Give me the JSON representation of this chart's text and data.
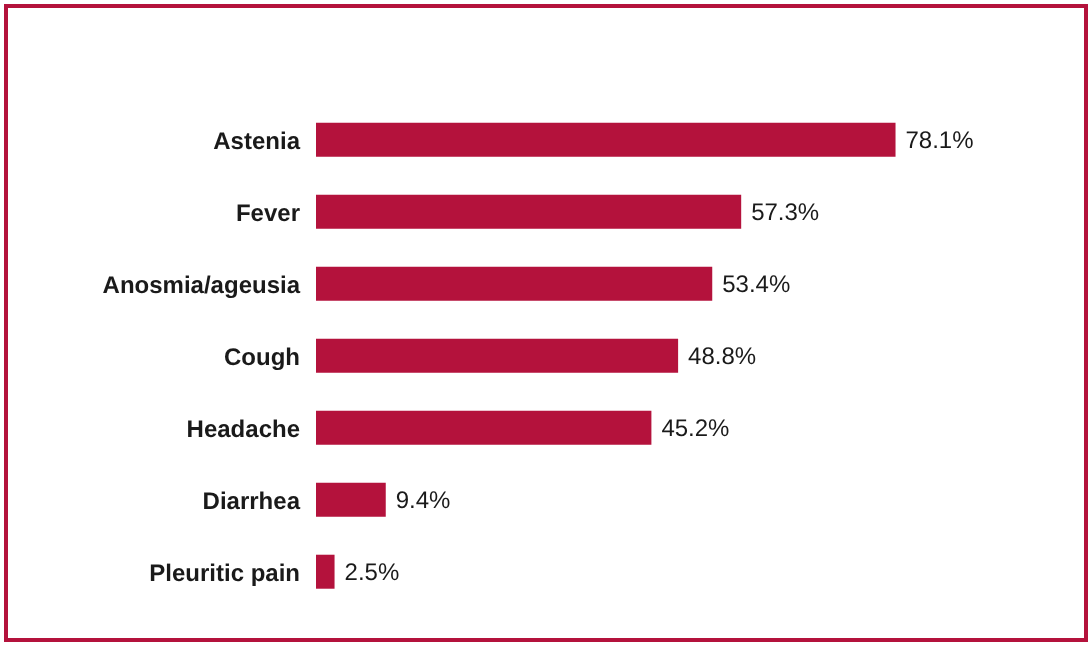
{
  "chart_data": {
    "type": "bar",
    "orientation": "horizontal",
    "categories": [
      "Astenia",
      "Fever",
      "Anosmia/ageusia",
      "Cough",
      "Headache",
      "Diarrhea",
      "Pleuritic pain"
    ],
    "values": [
      78.1,
      57.3,
      53.4,
      48.8,
      45.2,
      9.4,
      2.5
    ],
    "value_labels": [
      "78.1%",
      "57.3%",
      "53.4%",
      "48.8%",
      "45.2%",
      "9.4%",
      "2.5%"
    ],
    "color": "#b4123c",
    "grid": false,
    "legend": false
  }
}
